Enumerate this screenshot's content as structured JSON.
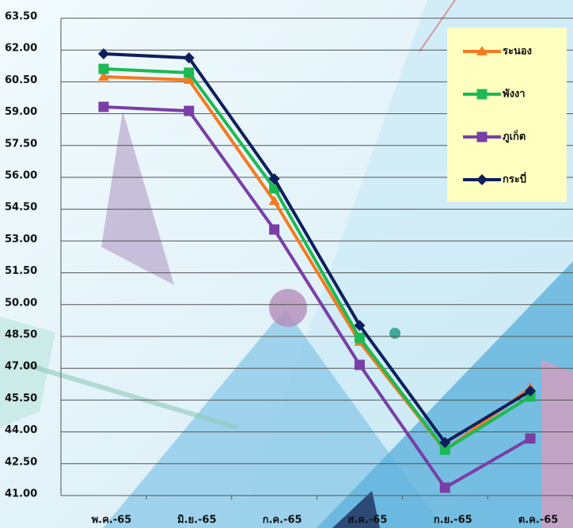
{
  "chart_data": {
    "type": "line",
    "categories": [
      "พ.ค.-65",
      "มิ.ย.-65",
      "ก.ค.-65",
      "ส.ค.-65",
      "ก.ย.-65",
      "ต.ค.-65"
    ],
    "series": [
      {
        "name": "ระนอง",
        "color": "#f47a20",
        "marker": "triangle",
        "values": [
          60.74,
          60.59,
          54.88,
          48.24,
          43.13,
          46.07
        ]
      },
      {
        "name": "พังงา",
        "color": "#1db954",
        "marker": "square",
        "values": [
          61.11,
          60.93,
          55.48,
          48.43,
          43.16,
          45.67
        ]
      },
      {
        "name": "ภูเก็ต",
        "color": "#7a3ea6",
        "marker": "square",
        "values": [
          59.32,
          59.13,
          53.54,
          47.16,
          41.37,
          43.69
        ]
      },
      {
        "name": "กระบี่",
        "color": "#0d1f5c",
        "marker": "diamond",
        "values": [
          61.82,
          61.63,
          55.93,
          49.02,
          43.5,
          45.93
        ]
      }
    ],
    "ylim": [
      41,
      63.5
    ],
    "yticks": [
      {
        "value": 41,
        "label": "41.00"
      },
      {
        "value": 42.5,
        "label": "42.50"
      },
      {
        "value": 44,
        "label": "44.00"
      },
      {
        "value": 45.5,
        "label": "45.50"
      },
      {
        "value": 47,
        "label": "47.00"
      },
      {
        "value": 48.5,
        "label": "48.50"
      },
      {
        "value": 50,
        "label": "50.00"
      },
      {
        "value": 51.5,
        "label": "51.50"
      },
      {
        "value": 53,
        "label": "53.00"
      },
      {
        "value": 54.5,
        "label": "54.50"
      },
      {
        "value": 56,
        "label": "56.00"
      },
      {
        "value": 57.5,
        "label": "57.50"
      },
      {
        "value": 59,
        "label": "59.00"
      },
      {
        "value": 60.5,
        "label": "60.50"
      },
      {
        "value": 62,
        "label": "62.00"
      },
      {
        "value": 63.5,
        "label": "63.50"
      }
    ],
    "grid": true,
    "legend": "upper right",
    "legend_color": "#ffffc0"
  }
}
